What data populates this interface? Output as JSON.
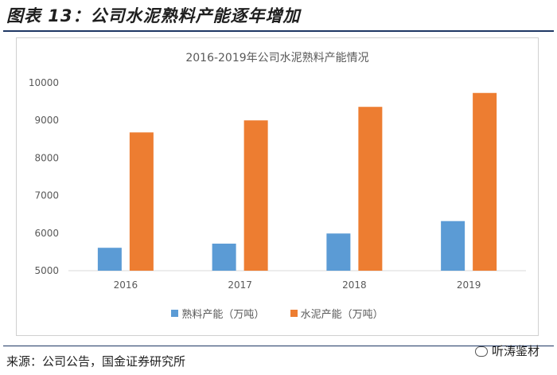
{
  "figure_title": "图表 13：公司水泥熟料产能逐年增加",
  "source_text": "来源：公司公告，国金证券研究所",
  "watermark_text": "听涛鉴材",
  "chart_data": {
    "type": "bar",
    "title": "2016-2019年公司水泥熟料产能情况",
    "categories": [
      "2016",
      "2017",
      "2018",
      "2019"
    ],
    "series": [
      {
        "name": "熟料产能（万吨）",
        "color": "#5b9bd5",
        "values": [
          5610,
          5720,
          5990,
          6320
        ]
      },
      {
        "name": "水泥产能（万吨）",
        "color": "#ed7d31",
        "values": [
          8680,
          9000,
          9360,
          9730
        ]
      }
    ],
    "ylim": [
      5000,
      10000
    ],
    "yticks": [
      5000,
      6000,
      7000,
      8000,
      9000,
      10000
    ],
    "grid": false,
    "legend": "bottom"
  }
}
